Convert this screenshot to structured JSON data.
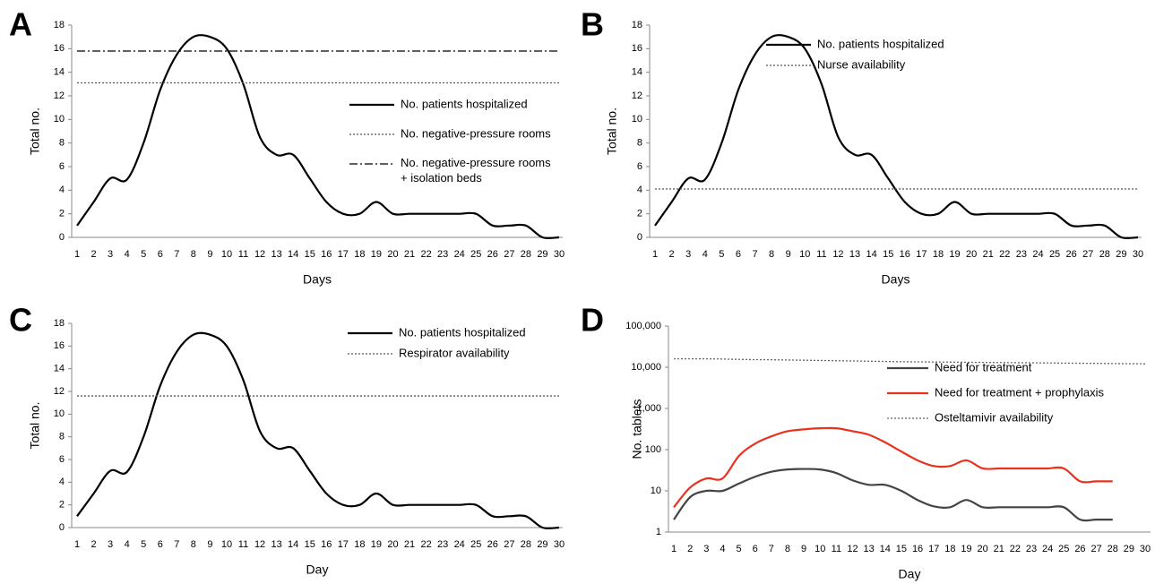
{
  "chart_data": [
    {
      "type": "line",
      "panel_label": "A",
      "y_label": "Total no.",
      "x_label": "Days",
      "categories": [
        1,
        2,
        3,
        4,
        5,
        6,
        7,
        8,
        9,
        10,
        11,
        12,
        13,
        14,
        15,
        16,
        17,
        18,
        19,
        20,
        21,
        22,
        23,
        24,
        25,
        26,
        27,
        28,
        29,
        30
      ],
      "ylim": [
        0,
        18
      ],
      "yticks": [
        0,
        2,
        4,
        6,
        8,
        10,
        12,
        14,
        16,
        18
      ],
      "series": [
        {
          "name": "No. patients hospitalized",
          "color": "#000000",
          "style": "solid",
          "values": [
            1,
            3,
            5,
            4.9,
            8,
            12.5,
            15.5,
            17,
            17,
            16,
            13,
            8.5,
            7,
            7,
            5,
            3,
            2,
            2,
            3,
            2,
            2,
            2,
            2,
            2,
            2,
            1,
            1,
            1,
            0,
            0
          ]
        },
        {
          "name": "No. negative-pressure rooms",
          "color": "#555555",
          "style": "dotted",
          "values": [
            13.1,
            13.1,
            13.1,
            13.1,
            13.1,
            13.1,
            13.1,
            13.1,
            13.1,
            13.1,
            13.1,
            13.1,
            13.1,
            13.1,
            13.1,
            13.1,
            13.1,
            13.1,
            13.1,
            13.1,
            13.1,
            13.1,
            13.1,
            13.1,
            13.1,
            13.1,
            13.1,
            13.1,
            13.1,
            13.1
          ]
        },
        {
          "name": "No. negative-pressure rooms\n+ isolation beds",
          "color": "#000000",
          "style": "dashdot",
          "values": [
            15.8,
            15.8,
            15.8,
            15.8,
            15.8,
            15.8,
            15.8,
            15.8,
            15.8,
            15.8,
            15.8,
            15.8,
            15.8,
            15.8,
            15.8,
            15.8,
            15.8,
            15.8,
            15.8,
            15.8,
            15.8,
            15.8,
            15.8,
            15.8,
            15.8,
            15.8,
            15.8,
            15.8,
            15.8,
            15.8
          ]
        }
      ]
    },
    {
      "type": "line",
      "panel_label": "B",
      "y_label": "Total no.",
      "x_label": "Days",
      "categories": [
        1,
        2,
        3,
        4,
        5,
        6,
        7,
        8,
        9,
        10,
        11,
        12,
        13,
        14,
        15,
        16,
        17,
        18,
        19,
        20,
        21,
        22,
        23,
        24,
        25,
        26,
        27,
        28,
        29,
        30
      ],
      "ylim": [
        0,
        18
      ],
      "yticks": [
        0,
        2,
        4,
        6,
        8,
        10,
        12,
        14,
        16,
        18
      ],
      "series": [
        {
          "name": "No. patients hospitalized",
          "color": "#000000",
          "style": "solid",
          "values": [
            1,
            3,
            5,
            4.9,
            8,
            12.5,
            15.5,
            17,
            17,
            16,
            13,
            8.5,
            7,
            7,
            5,
            3,
            2,
            2,
            3,
            2,
            2,
            2,
            2,
            2,
            2,
            1,
            1,
            1,
            0,
            0
          ]
        },
        {
          "name": "Nurse availability",
          "color": "#555555",
          "style": "dotted",
          "values": [
            4.1,
            4.1,
            4.1,
            4.1,
            4.1,
            4.1,
            4.1,
            4.1,
            4.1,
            4.1,
            4.1,
            4.1,
            4.1,
            4.1,
            4.1,
            4.1,
            4.1,
            4.1,
            4.1,
            4.1,
            4.1,
            4.1,
            4.1,
            4.1,
            4.1,
            4.1,
            4.1,
            4.1,
            4.1,
            4.1
          ]
        }
      ]
    },
    {
      "type": "line",
      "panel_label": "C",
      "y_label": "Total no.",
      "x_label": "Day",
      "categories": [
        1,
        2,
        3,
        4,
        5,
        6,
        7,
        8,
        9,
        10,
        11,
        12,
        13,
        14,
        15,
        16,
        17,
        18,
        19,
        20,
        21,
        22,
        23,
        24,
        25,
        26,
        27,
        28,
        29,
        30
      ],
      "ylim": [
        0,
        18
      ],
      "yticks": [
        0,
        2,
        4,
        6,
        8,
        10,
        12,
        14,
        16,
        18
      ],
      "series": [
        {
          "name": "No. patients hospitalized",
          "color": "#000000",
          "style": "solid",
          "values": [
            1,
            3,
            5,
            4.9,
            8,
            12.5,
            15.5,
            17,
            17,
            16,
            13,
            8.5,
            7,
            7,
            5,
            3,
            2,
            2,
            3,
            2,
            2,
            2,
            2,
            2,
            2,
            1,
            1,
            1,
            0,
            0
          ]
        },
        {
          "name": "Respirator availability",
          "color": "#555555",
          "style": "dotted",
          "values": [
            11.6,
            11.6,
            11.6,
            11.6,
            11.6,
            11.6,
            11.6,
            11.6,
            11.6,
            11.6,
            11.6,
            11.6,
            11.6,
            11.6,
            11.6,
            11.6,
            11.6,
            11.6,
            11.6,
            11.6,
            11.6,
            11.6,
            11.6,
            11.6,
            11.6,
            11.6,
            11.6,
            11.6,
            11.6,
            11.6
          ]
        }
      ]
    },
    {
      "type": "line",
      "panel_label": "D",
      "y_label": "No. tablets",
      "x_label": "Day",
      "log_scale": true,
      "categories": [
        1,
        2,
        3,
        4,
        5,
        6,
        7,
        8,
        9,
        10,
        11,
        12,
        13,
        14,
        15,
        16,
        17,
        18,
        19,
        20,
        21,
        22,
        23,
        24,
        25,
        26,
        27,
        28,
        29,
        30
      ],
      "ylim": [
        1,
        100000
      ],
      "yticks": [
        1,
        10,
        100,
        {
          "value": 1000,
          "label": "1,000"
        },
        {
          "value": 10000,
          "label": "10,000"
        },
        {
          "value": 100000,
          "label": "100,000"
        }
      ],
      "series": [
        {
          "name": "Need for treatment",
          "color": "#444444",
          "style": "solid",
          "values": [
            2,
            7,
            10,
            10,
            15,
            22,
            29,
            33,
            34,
            33,
            27,
            18,
            14,
            14,
            10,
            6,
            4.2,
            4,
            6,
            4,
            4,
            4,
            4,
            4,
            4,
            2,
            2,
            2,
            null,
            null
          ]
        },
        {
          "name": "Need for treatment + prophylaxis",
          "color": "#e8321e",
          "style": "solid",
          "values": [
            4,
            12,
            20,
            20,
            70,
            140,
            210,
            280,
            310,
            330,
            330,
            280,
            230,
            150,
            90,
            55,
            40,
            40,
            55,
            35,
            35,
            35,
            35,
            35,
            35,
            17,
            17,
            17,
            null,
            null
          ]
        },
        {
          "name": "Osteltamivir availability",
          "color": "#666666",
          "style": "dotted",
          "values": [
            16000,
            16000,
            16000,
            15800,
            15500,
            15300,
            15200,
            15000,
            14800,
            14600,
            14400,
            14200,
            14000,
            13800,
            13600,
            13500,
            13400,
            13300,
            13200,
            13100,
            13000,
            12900,
            12800,
            12700,
            12600,
            12500,
            12400,
            12300,
            12200,
            12100
          ]
        }
      ]
    }
  ]
}
